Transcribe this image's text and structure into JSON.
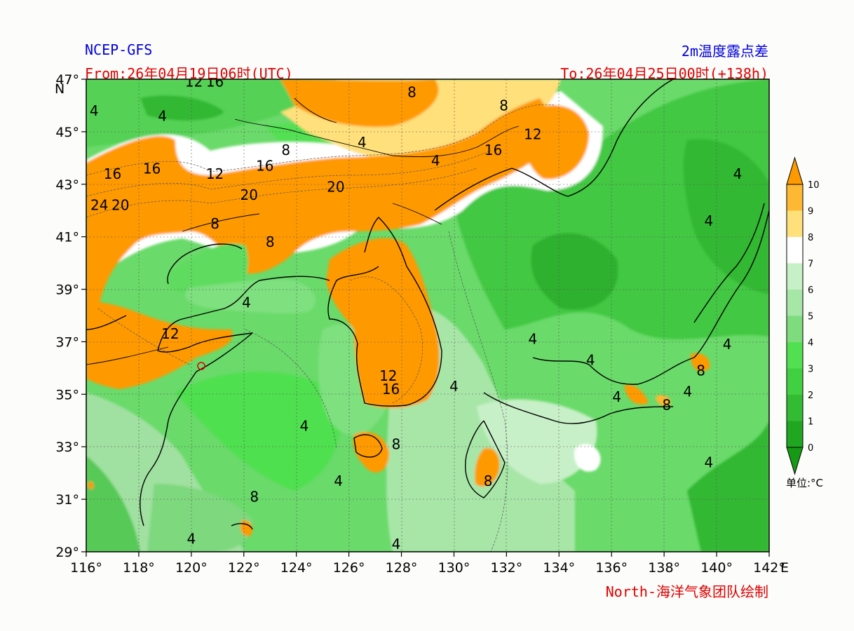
{
  "header": {
    "model": "NCEP-GFS",
    "title": "2m温度露点差",
    "from": "From:26年04月19日06时(UTC)",
    "to": "To:26年04月25日00时(+138h)"
  },
  "footer": {
    "credit": "North-海洋气象团队绘制"
  },
  "axes": {
    "lon_ticks": [
      {
        "label": "116°",
        "value": 116
      },
      {
        "label": "118°",
        "value": 118
      },
      {
        "label": "120°",
        "value": 120
      },
      {
        "label": "122°",
        "value": 122
      },
      {
        "label": "124°",
        "value": 124
      },
      {
        "label": "126°",
        "value": 126
      },
      {
        "label": "128°",
        "value": 128
      },
      {
        "label": "130°",
        "value": 130
      },
      {
        "label": "132°",
        "value": 132
      },
      {
        "label": "134°",
        "value": 134
      },
      {
        "label": "136°",
        "value": 136
      },
      {
        "label": "138°",
        "value": 138
      },
      {
        "label": "140°",
        "value": 140
      },
      {
        "label": "142°",
        "value": 142
      }
    ],
    "lat_ticks": [
      {
        "label": "47°",
        "value": 47
      },
      {
        "label": "45°",
        "value": 45
      },
      {
        "label": "43°",
        "value": 43
      },
      {
        "label": "41°",
        "value": 41
      },
      {
        "label": "39°",
        "value": 39
      },
      {
        "label": "37°",
        "value": 37
      },
      {
        "label": "35°",
        "value": 35
      },
      {
        "label": "33°",
        "value": 33
      },
      {
        "label": "31°",
        "value": 31
      },
      {
        "label": "29°",
        "value": 29
      }
    ],
    "lon_suffix": "E",
    "lat_suffix": "N",
    "lon_range": [
      116,
      142
    ],
    "lat_range": [
      29,
      47
    ]
  },
  "colorbar": {
    "unit": "单位:°C",
    "levels": [
      "0",
      "1",
      "2",
      "3",
      "4",
      "5",
      "6",
      "7",
      "8",
      "9",
      "10"
    ],
    "colors": [
      "#21a621",
      "#33bb33",
      "#41d041",
      "#52e052",
      "#7edc7e",
      "#a6e6a6",
      "#c6f0c6",
      "#ffffff",
      "#ffe07a",
      "#ffb833",
      "#ff9900"
    ],
    "under_color": "#169a16",
    "over_color": "#ff9900"
  },
  "contour_labels": [
    {
      "text": "12",
      "lon": 120.1,
      "lat": 46.9
    },
    {
      "text": "16",
      "lon": 120.9,
      "lat": 46.9
    },
    {
      "text": "8",
      "lon": 128.4,
      "lat": 46.5
    },
    {
      "text": "8",
      "lon": 131.9,
      "lat": 46.0
    },
    {
      "text": "4",
      "lon": 118.9,
      "lat": 45.6
    },
    {
      "text": "4",
      "lon": 116.3,
      "lat": 45.8
    },
    {
      "text": "12",
      "lon": 133.0,
      "lat": 44.9
    },
    {
      "text": "4",
      "lon": 126.5,
      "lat": 44.6
    },
    {
      "text": "8",
      "lon": 123.6,
      "lat": 44.3
    },
    {
      "text": "16",
      "lon": 131.5,
      "lat": 44.3
    },
    {
      "text": "4",
      "lon": 129.3,
      "lat": 43.9
    },
    {
      "text": "16",
      "lon": 117.0,
      "lat": 43.4
    },
    {
      "text": "16",
      "lon": 118.5,
      "lat": 43.6
    },
    {
      "text": "12",
      "lon": 120.9,
      "lat": 43.4
    },
    {
      "text": "16",
      "lon": 122.8,
      "lat": 43.7
    },
    {
      "text": "20",
      "lon": 125.5,
      "lat": 42.9
    },
    {
      "text": "20",
      "lon": 122.2,
      "lat": 42.6
    },
    {
      "text": "24",
      "lon": 116.5,
      "lat": 42.2
    },
    {
      "text": "20",
      "lon": 117.3,
      "lat": 42.2
    },
    {
      "text": "8",
      "lon": 120.9,
      "lat": 41.5
    },
    {
      "text": "8",
      "lon": 123.0,
      "lat": 40.8
    },
    {
      "text": "4",
      "lon": 122.1,
      "lat": 38.5
    },
    {
      "text": "12",
      "lon": 119.2,
      "lat": 37.3
    },
    {
      "text": "12",
      "lon": 127.5,
      "lat": 35.7
    },
    {
      "text": "16",
      "lon": 127.6,
      "lat": 35.2
    },
    {
      "text": "4",
      "lon": 130.0,
      "lat": 35.3
    },
    {
      "text": "4",
      "lon": 133.0,
      "lat": 37.1
    },
    {
      "text": "4",
      "lon": 124.3,
      "lat": 33.8
    },
    {
      "text": "8",
      "lon": 127.8,
      "lat": 33.1
    },
    {
      "text": "4",
      "lon": 125.6,
      "lat": 31.7
    },
    {
      "text": "8",
      "lon": 131.3,
      "lat": 31.7
    },
    {
      "text": "8",
      "lon": 122.4,
      "lat": 31.1
    },
    {
      "text": "4",
      "lon": 127.8,
      "lat": 29.3
    },
    {
      "text": "4",
      "lon": 120.0,
      "lat": 29.5
    },
    {
      "text": "4",
      "lon": 140.8,
      "lat": 43.4
    },
    {
      "text": "4",
      "lon": 139.7,
      "lat": 41.6
    },
    {
      "text": "4",
      "lon": 136.2,
      "lat": 34.9
    },
    {
      "text": "8",
      "lon": 138.1,
      "lat": 34.6
    },
    {
      "text": "8",
      "lon": 139.4,
      "lat": 35.9
    },
    {
      "text": "4",
      "lon": 140.4,
      "lat": 36.9
    },
    {
      "text": "4",
      "lon": 139.7,
      "lat": 32.4
    },
    {
      "text": "4",
      "lon": 135.2,
      "lat": 36.3
    },
    {
      "text": "4",
      "lon": 138.9,
      "lat": 35.1
    }
  ]
}
